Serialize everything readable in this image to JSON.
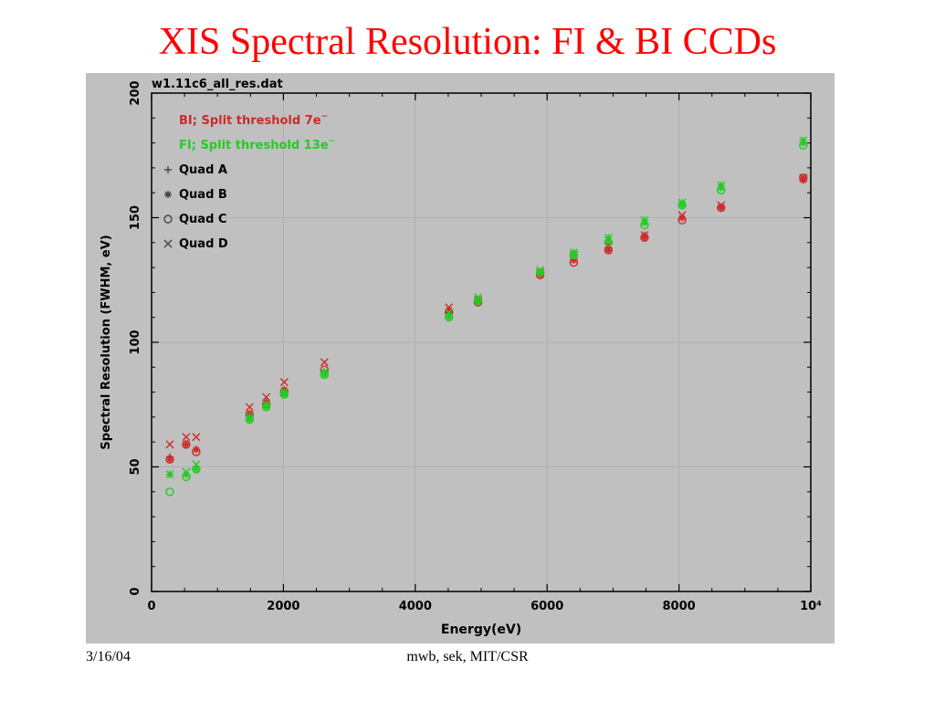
{
  "slide": {
    "title": "XIS Spectral Resolution: FI & BI CCDs",
    "footer_date": "3/16/04",
    "footer_credit": "mwb, sek, MIT/CSR"
  },
  "chart_data": {
    "type": "scatter",
    "title": "w1.11c6_all_res.dat",
    "xlabel": "Energy(eV)",
    "ylabel": "Spectral Resolution (FWHM, eV)",
    "xlim": [
      0,
      10000
    ],
    "ylim": [
      0,
      200
    ],
    "x_ticks": [
      "0",
      "2000",
      "4000",
      "6000",
      "8000",
      "10⁴"
    ],
    "x_tick_values": [
      0,
      2000,
      4000,
      6000,
      8000,
      10000
    ],
    "y_ticks": [
      "0",
      "50",
      "100",
      "150",
      "200"
    ],
    "y_tick_values": [
      0,
      50,
      100,
      150,
      200
    ],
    "grid": true,
    "legend_position": "top-left",
    "legend": {
      "groups": [
        {
          "label": "BI; Split threshold 7e",
          "color": "#cc2a2a"
        },
        {
          "label": "FI; Split threshold 13e",
          "color": "#22cc22"
        }
      ],
      "markers": [
        {
          "label": "Quad A",
          "marker": "plus"
        },
        {
          "label": "Quad B",
          "marker": "asterisk"
        },
        {
          "label": "Quad C",
          "marker": "circle"
        },
        {
          "label": "Quad D",
          "marker": "cross"
        }
      ]
    },
    "x": [
      277,
      525,
      677,
      1487,
      1740,
      2013,
      2622,
      4511,
      4952,
      5895,
      6404,
      6930,
      7478,
      8048,
      8639,
      9886
    ],
    "series": [
      {
        "name": "BI; Split threshold 7e",
        "quad": "Quad A",
        "marker": "plus",
        "color": "#cc2a2a",
        "values": [
          54,
          59,
          57,
          71,
          76,
          80,
          88,
          112,
          116,
          128,
          133,
          138,
          143,
          150,
          154,
          166
        ]
      },
      {
        "name": "BI; Split threshold 7e",
        "quad": "Quad B",
        "marker": "asterisk",
        "color": "#cc2a2a",
        "values": [
          53,
          59,
          57,
          71,
          76,
          81,
          88,
          113,
          116,
          127,
          133,
          137,
          142,
          150,
          154,
          165
        ]
      },
      {
        "name": "BI; Split threshold 7e",
        "quad": "Quad C",
        "marker": "circle",
        "color": "#cc2a2a",
        "values": [
          53,
          59,
          56,
          71,
          75,
          80,
          89,
          112,
          116,
          127,
          132,
          137,
          142,
          149,
          154,
          166
        ]
      },
      {
        "name": "BI; Split threshold 7e",
        "quad": "Quad D",
        "marker": "cross",
        "color": "#cc2a2a",
        "values": [
          59,
          62,
          62,
          74,
          78,
          84,
          92,
          114,
          117,
          128,
          135,
          139,
          143,
          151,
          155,
          166
        ]
      },
      {
        "name": "FI; Split threshold 13e",
        "quad": "Quad A",
        "marker": "plus",
        "color": "#22cc22",
        "values": [
          47,
          47,
          50,
          70,
          75,
          80,
          88,
          111,
          117,
          128,
          136,
          142,
          149,
          156,
          163,
          181
        ]
      },
      {
        "name": "FI; Split threshold 13e",
        "quad": "Quad B",
        "marker": "asterisk",
        "color": "#22cc22",
        "values": [
          47,
          47,
          49,
          69,
          74,
          79,
          87,
          110,
          116,
          128,
          135,
          141,
          148,
          155,
          162,
          180
        ]
      },
      {
        "name": "FI; Split threshold 13e",
        "quad": "Quad C",
        "marker": "circle",
        "color": "#22cc22",
        "values": [
          40,
          46,
          49,
          69,
          74,
          79,
          87,
          110,
          117,
          128,
          135,
          140,
          147,
          155,
          161,
          179
        ]
      },
      {
        "name": "FI; Split threshold 13e",
        "quad": "Quad D",
        "marker": "cross",
        "color": "#22cc22",
        "values": [
          47,
          48,
          51,
          70,
          75,
          80,
          88,
          112,
          118,
          129,
          136,
          142,
          149,
          156,
          163,
          181
        ]
      }
    ]
  }
}
